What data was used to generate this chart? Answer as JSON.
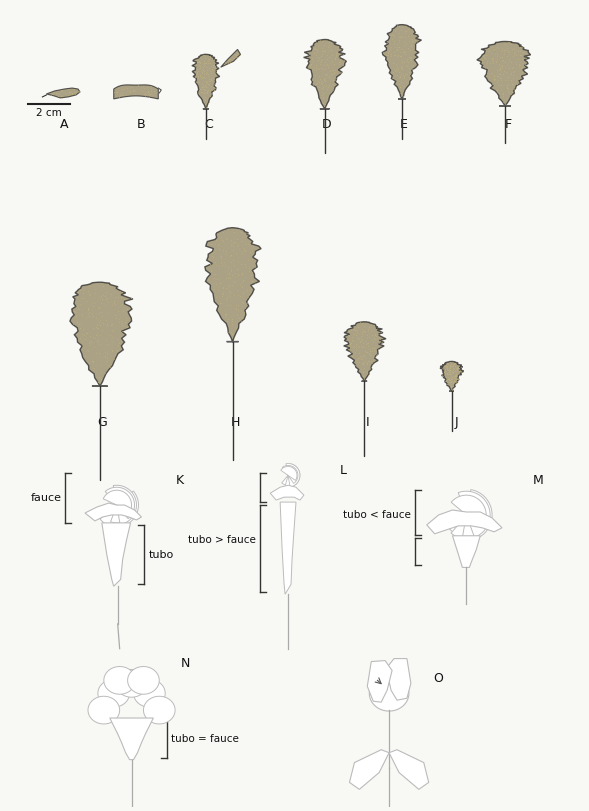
{
  "background_color": "#f8f8f5",
  "fig_width": 5.89,
  "fig_height": 8.11,
  "dpi": 100,
  "corolla_color": "#8b7d55",
  "corolla_edge": "#1a1a1a",
  "outline_color": "#999999",
  "text_color": "#111111",
  "scale_bar_text": "2 cm",
  "row1_labels": [
    "A",
    "B",
    "C",
    "D",
    "E",
    "F"
  ],
  "row2_labels": [
    "G",
    "H",
    "I",
    "J"
  ],
  "row3_labels": [
    "K",
    "L",
    "M"
  ],
  "row4_labels": [
    "N",
    "O"
  ],
  "ann_fauce": "fauce",
  "ann_tubo": "tubo",
  "ann_tubo_gt_fauce": "tubo > fauce",
  "ann_tubo_lt_fauce": "tubo < fauce",
  "ann_tubo_eq_fauce": "tubo = fauce"
}
